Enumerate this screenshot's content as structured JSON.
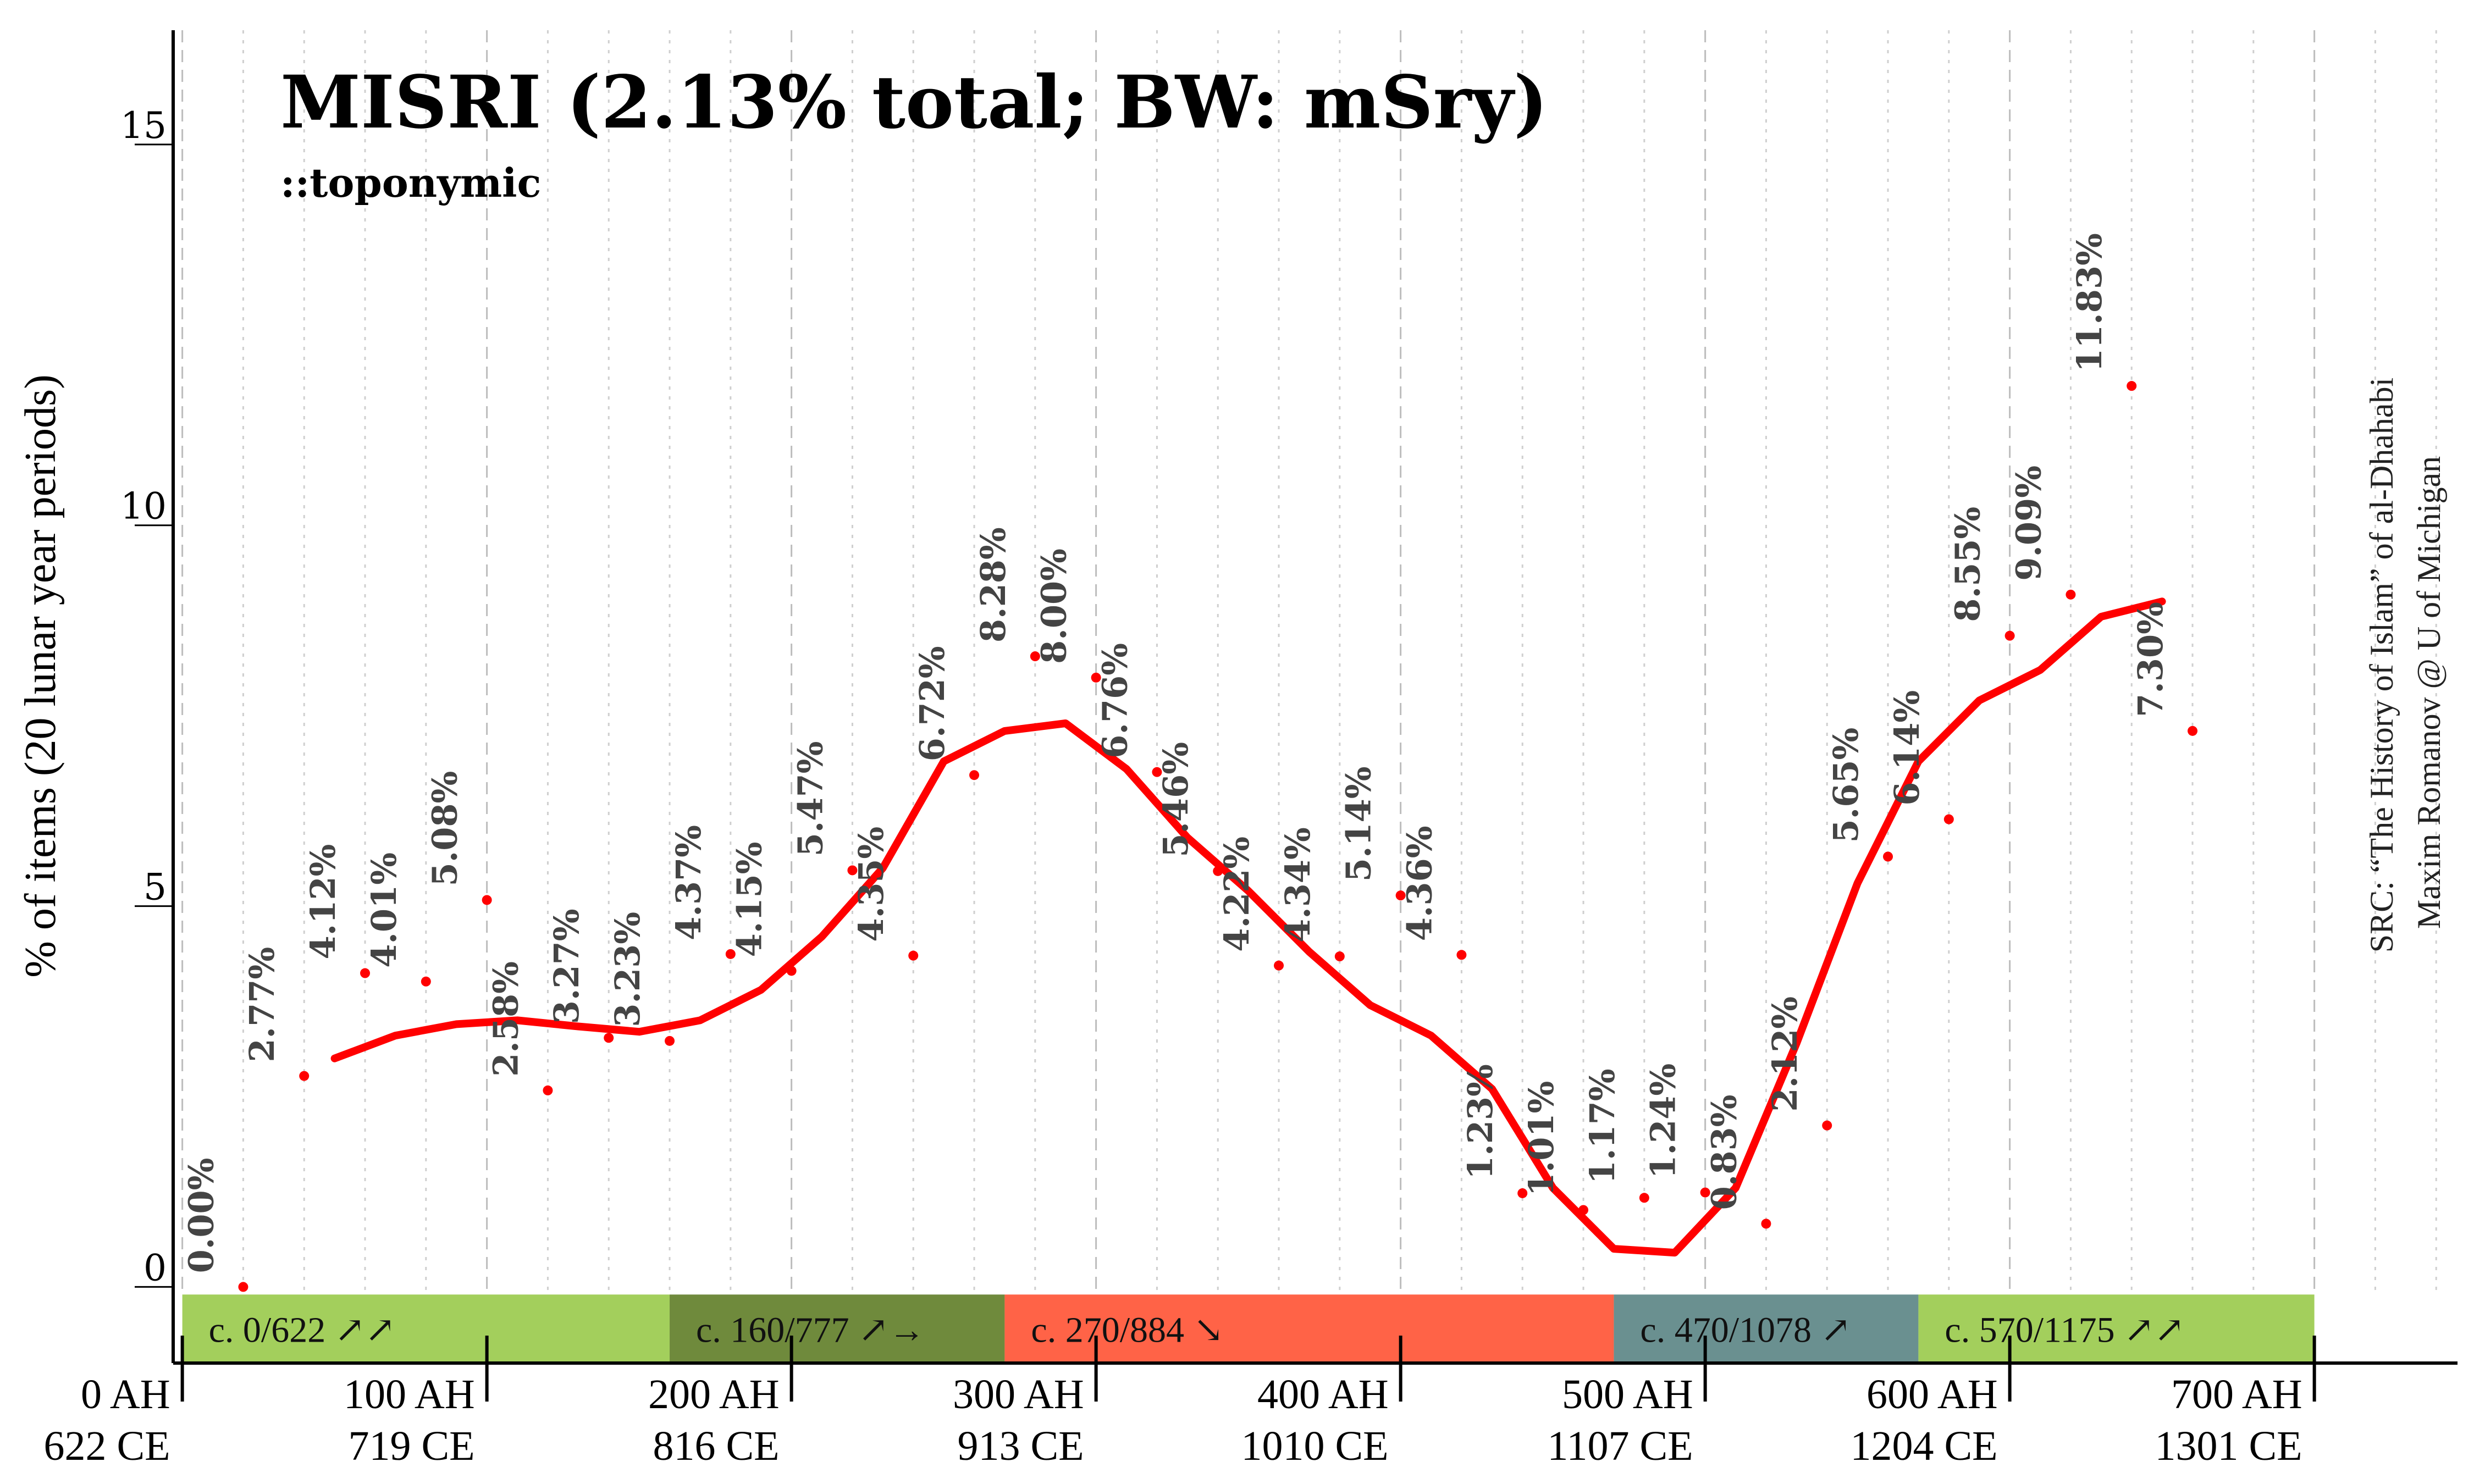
{
  "chart_data": {
    "type": "line",
    "title": "MISRI (2.13% total; BW: mSry)",
    "subtitle": "::toponymic",
    "ylabel": "% of items (20 lunar year periods)",
    "source_line1": "SRC: “The History of Islam” of al-Dhahabi",
    "source_line2": "Maxim Romanov @ U of Michigan",
    "ylim": [
      -1,
      16.5
    ],
    "xlim": [
      -3,
      747
    ],
    "y_ticks": [
      0,
      5,
      10,
      15
    ],
    "y_tick_labels": [
      "0",
      "5",
      "10",
      "15"
    ],
    "x_ticks": [
      {
        "ah": 0,
        "label_ah": "0 AH",
        "label_ce": "622 CE"
      },
      {
        "ah": 100,
        "label_ah": "100 AH",
        "label_ce": "719 CE"
      },
      {
        "ah": 200,
        "label_ah": "200 AH",
        "label_ce": "816 CE"
      },
      {
        "ah": 300,
        "label_ah": "300 AH",
        "label_ce": "913 CE"
      },
      {
        "ah": 400,
        "label_ah": "400 AH",
        "label_ce": "1010 CE"
      },
      {
        "ah": 500,
        "label_ah": "500 AH",
        "label_ce": "1107 CE"
      },
      {
        "ah": 600,
        "label_ah": "600 AH",
        "label_ce": "1204 CE"
      },
      {
        "ah": 700,
        "label_ah": "700 AH",
        "label_ce": "1301 CE"
      }
    ],
    "grid_dashed_ah": [
      0,
      100,
      200,
      300,
      400,
      500,
      600,
      700
    ],
    "grid_dotted_step_ah": 20,
    "grid": true,
    "points": [
      {
        "x": 20,
        "y": 0.0,
        "label": "0.00%"
      },
      {
        "x": 40,
        "y": 2.77,
        "label": "2.77%"
      },
      {
        "x": 60,
        "y": 4.12,
        "label": "4.12%"
      },
      {
        "x": 80,
        "y": 4.01,
        "label": "4.01%"
      },
      {
        "x": 100,
        "y": 5.08,
        "label": "5.08%"
      },
      {
        "x": 120,
        "y": 2.58,
        "label": "2.58%"
      },
      {
        "x": 140,
        "y": 3.27,
        "label": "3.27%"
      },
      {
        "x": 160,
        "y": 3.23,
        "label": "3.23%"
      },
      {
        "x": 180,
        "y": 4.37,
        "label": "4.37%"
      },
      {
        "x": 200,
        "y": 4.15,
        "label": "4.15%"
      },
      {
        "x": 220,
        "y": 5.47,
        "label": "5.47%"
      },
      {
        "x": 240,
        "y": 4.35,
        "label": "4.35%"
      },
      {
        "x": 260,
        "y": 6.72,
        "label": "6.72%"
      },
      {
        "x": 280,
        "y": 8.28,
        "label": "8.28%"
      },
      {
        "x": 300,
        "y": 8.0,
        "label": "8.00%"
      },
      {
        "x": 320,
        "y": 6.76,
        "label": "6.76%"
      },
      {
        "x": 340,
        "y": 5.46,
        "label": "5.46%"
      },
      {
        "x": 360,
        "y": 4.22,
        "label": "4.22%"
      },
      {
        "x": 380,
        "y": 4.34,
        "label": "4.34%"
      },
      {
        "x": 400,
        "y": 5.14,
        "label": "5.14%"
      },
      {
        "x": 420,
        "y": 4.36,
        "label": "4.36%"
      },
      {
        "x": 440,
        "y": 1.23,
        "label": "1.23%"
      },
      {
        "x": 460,
        "y": 1.01,
        "label": "1.01%"
      },
      {
        "x": 480,
        "y": 1.17,
        "label": "1.17%"
      },
      {
        "x": 500,
        "y": 1.24,
        "label": "1.24%"
      },
      {
        "x": 520,
        "y": 0.83,
        "label": "0.83%"
      },
      {
        "x": 540,
        "y": 2.12,
        "label": "2.12%"
      },
      {
        "x": 560,
        "y": 5.65,
        "label": "5.65%"
      },
      {
        "x": 580,
        "y": 6.14,
        "label": "6.14%"
      },
      {
        "x": 600,
        "y": 8.55,
        "label": "8.55%"
      },
      {
        "x": 620,
        "y": 9.09,
        "label": "9.09%"
      },
      {
        "x": 640,
        "y": 11.83,
        "label": "11.83%"
      },
      {
        "x": 660,
        "y": 7.3,
        "label": "7.30%"
      }
    ],
    "smoothed_series": {
      "color": "#ff0000",
      "x": [
        50,
        70,
        90,
        110,
        130,
        150,
        170,
        190,
        210,
        230,
        250,
        270,
        290,
        310,
        330,
        350,
        370,
        390,
        410,
        430,
        450,
        470,
        490,
        510,
        530,
        550,
        570,
        590,
        610,
        630,
        650
      ],
      "y": [
        3.0,
        3.3,
        3.45,
        3.5,
        3.42,
        3.35,
        3.5,
        3.9,
        4.6,
        5.5,
        6.9,
        7.3,
        7.4,
        6.8,
        5.9,
        5.2,
        4.4,
        3.7,
        3.3,
        2.6,
        1.3,
        0.5,
        0.45,
        1.3,
        3.2,
        5.3,
        6.9,
        7.7,
        8.1,
        8.8,
        9.0
      ]
    },
    "period_bands": [
      {
        "label": "c. 0/622 ↗↗",
        "start": 0,
        "end": 160,
        "color": "#a3cf5c"
      },
      {
        "label": "c. 160/777 ↗→",
        "start": 160,
        "end": 270,
        "color": "#6f8a3c"
      },
      {
        "label": "c. 270/884 ↘",
        "start": 270,
        "end": 470,
        "color": "#ff6347"
      },
      {
        "label": "c. 470/1078 ↗",
        "start": 470,
        "end": 570,
        "color": "#6a9090"
      },
      {
        "label": "c. 570/1175 ↗↗",
        "start": 570,
        "end": 700,
        "color": "#a3cf5c"
      }
    ],
    "point_color": "#ff0000",
    "label_color": "#444444"
  }
}
